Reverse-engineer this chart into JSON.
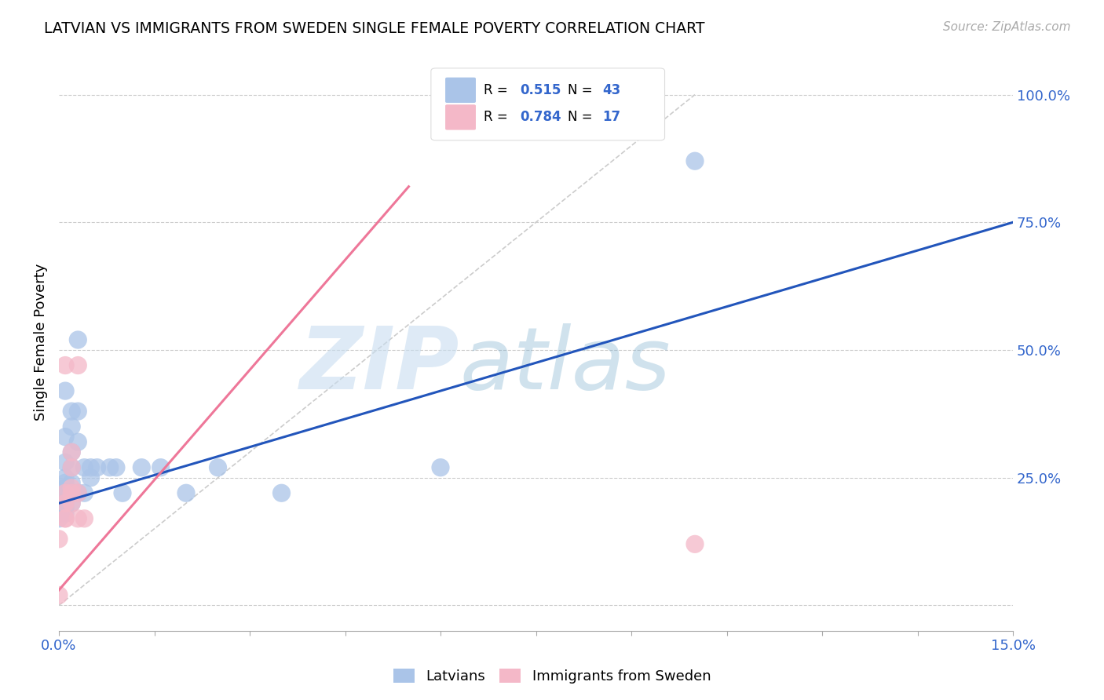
{
  "title": "LATVIAN VS IMMIGRANTS FROM SWEDEN SINGLE FEMALE POVERTY CORRELATION CHART",
  "source": "Source: ZipAtlas.com",
  "ylabel": "Single Female Poverty",
  "xlim": [
    0.0,
    0.15
  ],
  "ylim": [
    -0.05,
    1.08
  ],
  "y_ticks": [
    0.0,
    0.25,
    0.5,
    0.75,
    1.0
  ],
  "y_tick_labels": [
    "",
    "25.0%",
    "50.0%",
    "75.0%",
    "100.0%"
  ],
  "latvians_R": "0.515",
  "latvians_N": "43",
  "sweden_R": "0.784",
  "sweden_N": "17",
  "legend_label_1": "Latvians",
  "legend_label_2": "Immigrants from Sweden",
  "r_label_color": "#3366cc",
  "latvian_color": "#aac4e8",
  "sweden_color": "#f4b8c8",
  "latvian_line_color": "#2255bb",
  "sweden_line_color": "#ee7799",
  "background_color": "#ffffff",
  "grid_color": "#cccccc",
  "latvians_x": [
    0.0,
    0.0,
    0.0,
    0.0,
    0.0,
    0.0,
    0.001,
    0.001,
    0.001,
    0.001,
    0.001,
    0.001,
    0.001,
    0.001,
    0.001,
    0.001,
    0.001,
    0.002,
    0.002,
    0.002,
    0.002,
    0.002,
    0.002,
    0.002,
    0.003,
    0.003,
    0.003,
    0.003,
    0.004,
    0.004,
    0.005,
    0.005,
    0.006,
    0.008,
    0.009,
    0.01,
    0.013,
    0.016,
    0.02,
    0.025,
    0.035,
    0.06,
    0.1
  ],
  "latvians_y": [
    0.17,
    0.18,
    0.18,
    0.19,
    0.19,
    0.2,
    0.18,
    0.19,
    0.2,
    0.21,
    0.22,
    0.23,
    0.24,
    0.25,
    0.28,
    0.33,
    0.42,
    0.2,
    0.22,
    0.24,
    0.27,
    0.3,
    0.35,
    0.38,
    0.22,
    0.32,
    0.38,
    0.52,
    0.22,
    0.27,
    0.25,
    0.27,
    0.27,
    0.27,
    0.27,
    0.22,
    0.27,
    0.27,
    0.22,
    0.27,
    0.22,
    0.27,
    0.87
  ],
  "sweden_x": [
    0.0,
    0.0,
    0.001,
    0.001,
    0.001,
    0.001,
    0.001,
    0.002,
    0.002,
    0.002,
    0.002,
    0.002,
    0.003,
    0.003,
    0.003,
    0.004,
    0.1
  ],
  "sweden_y": [
    0.02,
    0.13,
    0.17,
    0.17,
    0.2,
    0.22,
    0.47,
    0.2,
    0.22,
    0.23,
    0.27,
    0.3,
    0.17,
    0.22,
    0.47,
    0.17,
    0.12
  ],
  "latvian_line_x0": 0.0,
  "latvian_line_y0": 0.2,
  "latvian_line_x1": 0.15,
  "latvian_line_y1": 0.75,
  "sweden_line_x0": 0.0,
  "sweden_line_y0": 0.03,
  "sweden_line_x1": 0.055,
  "sweden_line_y1": 0.82
}
